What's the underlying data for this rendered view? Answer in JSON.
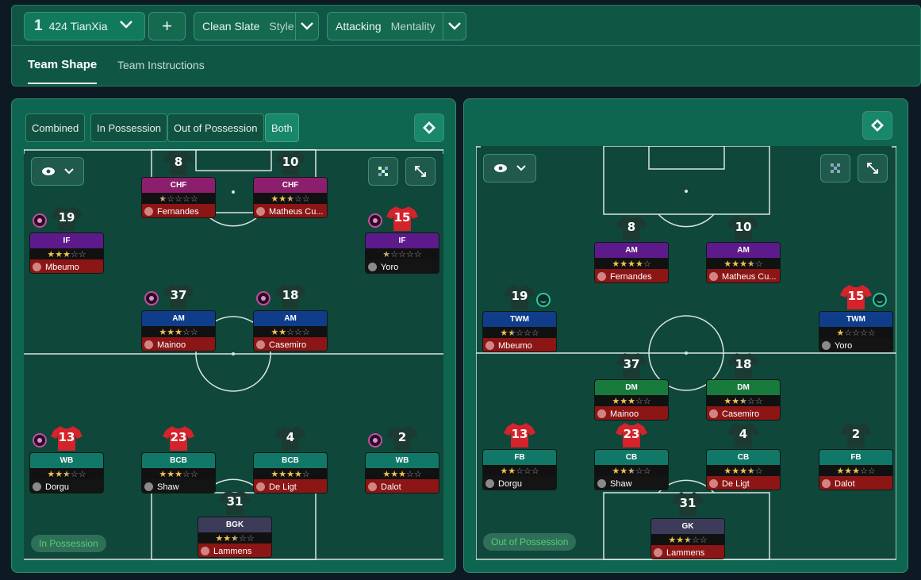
{
  "toolbar": {
    "formation_number": "1",
    "formation_name": "424 TianXia",
    "add_label": "+",
    "style_value": "Clean Slate",
    "style_label": "Style",
    "mentality_value": "Attacking",
    "mentality_label": "Mentality"
  },
  "tabs": [
    {
      "label": "Team Shape",
      "active": true
    },
    {
      "label": "Team Instructions",
      "active": false
    }
  ],
  "left_panel": {
    "filters": [
      {
        "label": "Combined",
        "active": false
      },
      {
        "label": "In Possession",
        "active": false
      },
      {
        "label": "Out of Possession",
        "active": false
      },
      {
        "label": "Both",
        "active": true
      }
    ],
    "phase_label": "In Possession"
  },
  "right_panel": {
    "phase_label": "Out of Possession"
  },
  "role_colors": {
    "CHF": "#8b1f6e",
    "IF": "#5d1a8a",
    "AM_purple": "#5d1a8a",
    "AM_blue": "#0f3d8a",
    "TWM": "#0f3d8a",
    "DM": "#187a3c",
    "defender": "#117868",
    "GK": "#3c3c5a"
  },
  "left_players": [
    {
      "id": "l8",
      "number": "8",
      "role": "CHF",
      "role_color": "#8b1f6e",
      "stars": 0.5,
      "name": "Fernandes",
      "name_bg": "red",
      "shirt": "dark"
    },
    {
      "id": "l10",
      "number": "10",
      "role": "CHF",
      "role_color": "#8b1f6e",
      "stars": 2.5,
      "name": "Matheus Cu...",
      "name_bg": "red",
      "shirt": "dark"
    },
    {
      "id": "l19",
      "number": "19",
      "role": "IF",
      "role_color": "#5d1a8a",
      "stars": 3,
      "name": "Mbeumo",
      "name_bg": "red",
      "shirt": "dark",
      "badge": "purple"
    },
    {
      "id": "l15",
      "number": "15",
      "role": "IF",
      "role_color": "#5d1a8a",
      "stars": 0.5,
      "name": "Yoro",
      "name_bg": "dark",
      "shirt": "red",
      "badge": "purple"
    },
    {
      "id": "l37",
      "number": "37",
      "role": "AM",
      "role_color": "#0f3d8a",
      "stars": 3,
      "name": "Mainoo",
      "name_bg": "red",
      "shirt": "dark",
      "badge": "purple"
    },
    {
      "id": "l18",
      "number": "18",
      "role": "AM",
      "role_color": "#0f3d8a",
      "stars": 2,
      "name": "Casemiro",
      "name_bg": "red",
      "shirt": "dark",
      "badge": "purple"
    },
    {
      "id": "l13",
      "number": "13",
      "role": "WB",
      "role_color": "#117868",
      "stars": 2.5,
      "name": "Dorgu",
      "name_bg": "dark",
      "shirt": "red",
      "badge": "purple"
    },
    {
      "id": "l23",
      "number": "23",
      "role": "BCB",
      "role_color": "#117868",
      "stars": 3,
      "name": "Shaw",
      "name_bg": "dark",
      "shirt": "red"
    },
    {
      "id": "l4",
      "number": "4",
      "role": "BCB",
      "role_color": "#117868",
      "stars": 4,
      "name": "De Ligt",
      "name_bg": "red",
      "shirt": "dark"
    },
    {
      "id": "l2",
      "number": "2",
      "role": "WB",
      "role_color": "#117868",
      "stars": 3,
      "name": "Dalot",
      "name_bg": "red",
      "shirt": "dark",
      "badge": "purple"
    },
    {
      "id": "l31",
      "number": "31",
      "role": "BGK",
      "role_color": "#3c3c5a",
      "stars": 2.5,
      "name": "Lammens",
      "name_bg": "red",
      "shirt": "dark"
    }
  ],
  "right_players": [
    {
      "id": "r8",
      "number": "8",
      "role": "AM",
      "role_color": "#5d1a8a",
      "stars": 4,
      "name": "Fernandes",
      "name_bg": "red",
      "shirt": "dark"
    },
    {
      "id": "r10",
      "number": "10",
      "role": "AM",
      "role_color": "#5d1a8a",
      "stars": 3.5,
      "name": "Matheus Cu...",
      "name_bg": "red",
      "shirt": "dark"
    },
    {
      "id": "r19",
      "number": "19",
      "role": "TWM",
      "role_color": "#0f3d8a",
      "stars": 1.5,
      "name": "Mbeumo",
      "name_bg": "red",
      "shirt": "dark",
      "badge": "teal"
    },
    {
      "id": "r15",
      "number": "15",
      "role": "TWM",
      "role_color": "#0f3d8a",
      "stars": 1,
      "name": "Yoro",
      "name_bg": "dark",
      "shirt": "red",
      "badge": "teal"
    },
    {
      "id": "r37",
      "number": "37",
      "role": "DM",
      "role_color": "#187a3c",
      "stars": 3,
      "name": "Mainoo",
      "name_bg": "red",
      "shirt": "dark"
    },
    {
      "id": "r18",
      "number": "18",
      "role": "DM",
      "role_color": "#187a3c",
      "stars": 2.5,
      "name": "Casemiro",
      "name_bg": "red",
      "shirt": "dark"
    },
    {
      "id": "r13",
      "number": "13",
      "role": "FB",
      "role_color": "#117868",
      "stars": 2,
      "name": "Dorgu",
      "name_bg": "dark",
      "shirt": "red"
    },
    {
      "id": "r23",
      "number": "23",
      "role": "CB",
      "role_color": "#117868",
      "stars": 2.5,
      "name": "Shaw",
      "name_bg": "dark",
      "shirt": "red"
    },
    {
      "id": "r4",
      "number": "4",
      "role": "CB",
      "role_color": "#117868",
      "stars": 3.5,
      "name": "De Ligt",
      "name_bg": "red",
      "shirt": "dark"
    },
    {
      "id": "r2",
      "number": "2",
      "role": "FB",
      "role_color": "#117868",
      "stars": 3,
      "name": "Dalot",
      "name_bg": "red",
      "shirt": "dark"
    },
    {
      "id": "r31",
      "number": "31",
      "role": "GK",
      "role_color": "#3c3c5a",
      "stars": 2.5,
      "name": "Lammens",
      "name_bg": "red",
      "shirt": "dark"
    }
  ]
}
